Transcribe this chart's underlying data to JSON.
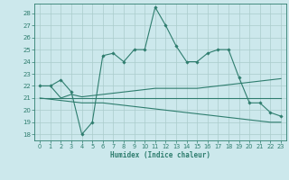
{
  "xlabel": "Humidex (Indice chaleur)",
  "bg_color": "#cce8ec",
  "grid_color": "#aacccc",
  "line_color": "#2e7d6e",
  "xlim": [
    -0.5,
    23.5
  ],
  "ylim": [
    17.5,
    28.8
  ],
  "yticks": [
    18,
    19,
    20,
    21,
    22,
    23,
    24,
    25,
    26,
    27,
    28
  ],
  "xticks": [
    0,
    1,
    2,
    3,
    4,
    5,
    6,
    7,
    8,
    9,
    10,
    11,
    12,
    13,
    14,
    15,
    16,
    17,
    18,
    19,
    20,
    21,
    22,
    23
  ],
  "line1_x": [
    0,
    1,
    2,
    3,
    4,
    5,
    6,
    7,
    8,
    9,
    10,
    11,
    12,
    13,
    14,
    15,
    16,
    17,
    18,
    19,
    20,
    21,
    22,
    23
  ],
  "line1_y": [
    22.0,
    22.0,
    22.5,
    21.5,
    18.0,
    19.0,
    24.5,
    24.7,
    24.0,
    25.0,
    25.0,
    28.5,
    27.0,
    25.3,
    24.0,
    24.0,
    24.7,
    25.0,
    25.0,
    22.7,
    20.6,
    20.6,
    19.8,
    19.5
  ],
  "line2_x": [
    0,
    1,
    2,
    3,
    4,
    5,
    6,
    7,
    8,
    9,
    10,
    11,
    12,
    13,
    14,
    15,
    16,
    17,
    18,
    19,
    20,
    21,
    22,
    23
  ],
  "line2_y": [
    22.0,
    22.0,
    21.0,
    21.3,
    21.1,
    21.2,
    21.3,
    21.4,
    21.5,
    21.6,
    21.7,
    21.8,
    21.8,
    21.8,
    21.8,
    21.8,
    21.9,
    22.0,
    22.1,
    22.2,
    22.3,
    22.4,
    22.5,
    22.6
  ],
  "line3_x": [
    0,
    1,
    2,
    3,
    4,
    5,
    6,
    7,
    8,
    9,
    10,
    11,
    12,
    13,
    14,
    15,
    16,
    17,
    18,
    19,
    20,
    21,
    22,
    23
  ],
  "line3_y": [
    21.0,
    21.0,
    21.0,
    21.0,
    21.0,
    21.0,
    21.0,
    21.0,
    21.0,
    21.0,
    21.0,
    21.0,
    21.0,
    21.0,
    21.0,
    21.0,
    21.0,
    21.0,
    21.0,
    21.0,
    21.0,
    21.0,
    21.0,
    21.0
  ],
  "line4_x": [
    0,
    1,
    2,
    3,
    4,
    5,
    6,
    7,
    8,
    9,
    10,
    11,
    12,
    13,
    14,
    15,
    16,
    17,
    18,
    19,
    20,
    21,
    22,
    23
  ],
  "line4_y": [
    21.0,
    20.9,
    20.8,
    20.7,
    20.6,
    20.6,
    20.6,
    20.5,
    20.4,
    20.3,
    20.2,
    20.1,
    20.0,
    19.9,
    19.8,
    19.7,
    19.6,
    19.5,
    19.4,
    19.3,
    19.2,
    19.1,
    19.0,
    19.0
  ],
  "marker_x": [
    0,
    1,
    2,
    3,
    4,
    5,
    6,
    7,
    8,
    9,
    10,
    11,
    12,
    13,
    14,
    15,
    16,
    17,
    18,
    19,
    20,
    21,
    22,
    23
  ],
  "marker_y": [
    22.0,
    22.0,
    22.5,
    21.5,
    18.0,
    19.0,
    24.5,
    24.7,
    24.0,
    25.0,
    25.0,
    28.5,
    27.0,
    25.3,
    24.0,
    24.0,
    24.7,
    25.0,
    25.0,
    22.7,
    20.6,
    20.6,
    19.8,
    19.5
  ]
}
